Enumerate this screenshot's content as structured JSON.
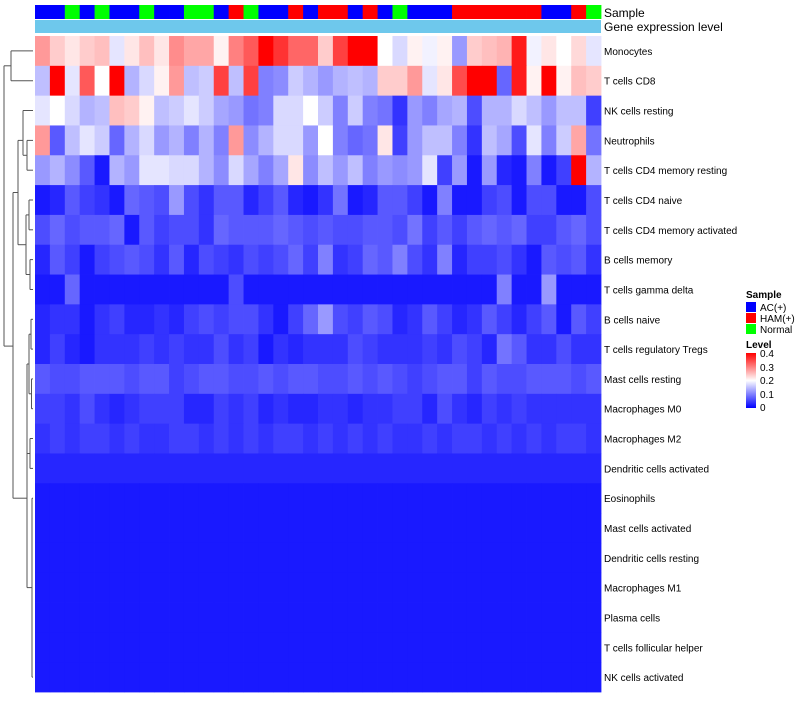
{
  "chart_data": {
    "type": "heatmap",
    "title": "",
    "annotation_tracks": [
      "Sample",
      "Gene expression level"
    ],
    "annotation_track_sample": [
      0,
      0,
      2,
      0,
      2,
      0,
      0,
      2,
      0,
      0,
      2,
      2,
      0,
      1,
      2,
      0,
      0,
      1,
      0,
      1,
      1,
      0,
      1,
      0,
      2,
      0,
      0,
      0,
      1,
      1,
      1,
      1,
      1,
      1,
      0,
      0,
      1,
      2
    ],
    "row_labels": [
      "Monocytes",
      "T cells CD8",
      "NK cells resting",
      "Neutrophils",
      "T cells CD4 memory resting",
      "T cells CD4 naive",
      "T cells CD4 memory activated",
      "B cells memory",
      "T cells gamma delta",
      "B cells naive",
      "T cells regulatory  Tregs",
      "Mast cells resting",
      "Macrophages M0",
      "Macrophages M2",
      "Dendritic cells activated",
      "Eosinophils",
      "Mast cells activated",
      "Dendritic cells resting",
      "Macrophages M1",
      "Plasma cells",
      "T cells follicular helper",
      "NK cells activated"
    ],
    "matrix": [
      [
        0.28,
        0.24,
        0.22,
        0.24,
        0.25,
        0.18,
        0.22,
        0.25,
        0.22,
        0.29,
        0.27,
        0.27,
        0.21,
        0.3,
        0.33,
        0.4,
        0.36,
        0.32,
        0.32,
        0.24,
        0.35,
        0.4,
        0.4,
        0.2,
        0.17,
        0.21,
        0.19,
        0.21,
        0.12,
        0.24,
        0.25,
        0.26,
        0.38,
        0.19,
        0.22,
        0.2,
        0.23,
        0.18
      ],
      [
        0.15,
        0.4,
        0.18,
        0.33,
        0.2,
        0.4,
        0.14,
        0.17,
        0.21,
        0.28,
        0.15,
        0.16,
        0.35,
        0.15,
        0.35,
        0.1,
        0.11,
        0.16,
        0.14,
        0.12,
        0.14,
        0.15,
        0.14,
        0.24,
        0.24,
        0.28,
        0.18,
        0.22,
        0.34,
        0.4,
        0.4,
        0.08,
        0.38,
        0.21,
        0.4,
        0.21,
        0.25,
        0.24
      ],
      [
        0.18,
        0.2,
        0.17,
        0.14,
        0.15,
        0.25,
        0.24,
        0.21,
        0.15,
        0.16,
        0.18,
        0.16,
        0.13,
        0.12,
        0.09,
        0.1,
        0.17,
        0.17,
        0.2,
        0.16,
        0.1,
        0.16,
        0.1,
        0.09,
        0.04,
        0.12,
        0.1,
        0.13,
        0.14,
        0.06,
        0.14,
        0.14,
        0.17,
        0.15,
        0.12,
        0.15,
        0.15,
        0.05
      ],
      [
        0.28,
        0.07,
        0.15,
        0.18,
        0.16,
        0.08,
        0.14,
        0.17,
        0.12,
        0.14,
        0.1,
        0.14,
        0.1,
        0.28,
        0.11,
        0.14,
        0.17,
        0.17,
        0.12,
        0.2,
        0.1,
        0.08,
        0.09,
        0.22,
        0.05,
        0.12,
        0.15,
        0.15,
        0.1,
        0.04,
        0.15,
        0.13,
        0.06,
        0.18,
        0.1,
        0.16,
        0.27,
        0.09
      ],
      [
        0.12,
        0.14,
        0.11,
        0.07,
        0.02,
        0.14,
        0.12,
        0.18,
        0.18,
        0.17,
        0.17,
        0.14,
        0.11,
        0.17,
        0.13,
        0.1,
        0.13,
        0.22,
        0.11,
        0.15,
        0.12,
        0.15,
        0.1,
        0.12,
        0.11,
        0.12,
        0.18,
        0.05,
        0.12,
        0.02,
        0.12,
        0.03,
        0.02,
        0.1,
        0.02,
        0.05,
        0.4,
        0.14
      ],
      [
        0.02,
        0.03,
        0.07,
        0.05,
        0.04,
        0.02,
        0.08,
        0.07,
        0.06,
        0.12,
        0.06,
        0.04,
        0.07,
        0.07,
        0.03,
        0.05,
        0.07,
        0.03,
        0.02,
        0.04,
        0.09,
        0.02,
        0.03,
        0.07,
        0.07,
        0.05,
        0.02,
        0.1,
        0.02,
        0.02,
        0.05,
        0.06,
        0.02,
        0.06,
        0.06,
        0.02,
        0.02,
        0.06
      ],
      [
        0.06,
        0.08,
        0.06,
        0.07,
        0.07,
        0.08,
        0.02,
        0.07,
        0.05,
        0.06,
        0.06,
        0.04,
        0.08,
        0.07,
        0.07,
        0.07,
        0.08,
        0.07,
        0.06,
        0.07,
        0.06,
        0.06,
        0.07,
        0.07,
        0.06,
        0.09,
        0.05,
        0.07,
        0.05,
        0.07,
        0.08,
        0.07,
        0.08,
        0.05,
        0.05,
        0.07,
        0.08,
        0.06
      ],
      [
        0.03,
        0.07,
        0.05,
        0.02,
        0.05,
        0.06,
        0.07,
        0.06,
        0.04,
        0.07,
        0.03,
        0.06,
        0.05,
        0.04,
        0.06,
        0.05,
        0.06,
        0.08,
        0.05,
        0.1,
        0.04,
        0.05,
        0.08,
        0.07,
        0.1,
        0.06,
        0.04,
        0.1,
        0.03,
        0.05,
        0.05,
        0.06,
        0.04,
        0.02,
        0.07,
        0.06,
        0.07,
        0.04
      ],
      [
        0.02,
        0.02,
        0.08,
        0.02,
        0.02,
        0.02,
        0.02,
        0.02,
        0.02,
        0.02,
        0.02,
        0.02,
        0.02,
        0.06,
        0.02,
        0.02,
        0.02,
        0.02,
        0.02,
        0.02,
        0.02,
        0.02,
        0.02,
        0.02,
        0.02,
        0.02,
        0.02,
        0.02,
        0.02,
        0.02,
        0.02,
        0.1,
        0.02,
        0.02,
        0.12,
        0.02,
        0.02,
        0.02
      ],
      [
        0.03,
        0.04,
        0.04,
        0.02,
        0.04,
        0.05,
        0.03,
        0.03,
        0.04,
        0.03,
        0.05,
        0.06,
        0.05,
        0.06,
        0.06,
        0.04,
        0.02,
        0.05,
        0.08,
        0.12,
        0.06,
        0.05,
        0.07,
        0.06,
        0.03,
        0.04,
        0.07,
        0.05,
        0.03,
        0.04,
        0.07,
        0.05,
        0.03,
        0.05,
        0.07,
        0.02,
        0.07,
        0.05
      ],
      [
        0.03,
        0.05,
        0.03,
        0.02,
        0.04,
        0.04,
        0.04,
        0.05,
        0.04,
        0.05,
        0.04,
        0.04,
        0.06,
        0.04,
        0.05,
        0.02,
        0.04,
        0.03,
        0.04,
        0.04,
        0.04,
        0.06,
        0.05,
        0.04,
        0.04,
        0.04,
        0.05,
        0.04,
        0.06,
        0.05,
        0.03,
        0.09,
        0.07,
        0.04,
        0.04,
        0.06,
        0.04,
        0.04
      ],
      [
        0.07,
        0.06,
        0.06,
        0.07,
        0.07,
        0.07,
        0.06,
        0.07,
        0.07,
        0.05,
        0.06,
        0.07,
        0.07,
        0.06,
        0.06,
        0.07,
        0.06,
        0.07,
        0.07,
        0.06,
        0.06,
        0.07,
        0.06,
        0.07,
        0.06,
        0.05,
        0.06,
        0.07,
        0.07,
        0.05,
        0.07,
        0.06,
        0.06,
        0.07,
        0.07,
        0.07,
        0.06,
        0.07
      ],
      [
        0.05,
        0.05,
        0.04,
        0.06,
        0.04,
        0.03,
        0.04,
        0.05,
        0.05,
        0.05,
        0.03,
        0.03,
        0.05,
        0.04,
        0.05,
        0.03,
        0.04,
        0.03,
        0.03,
        0.04,
        0.04,
        0.03,
        0.04,
        0.04,
        0.05,
        0.05,
        0.03,
        0.06,
        0.04,
        0.03,
        0.05,
        0.04,
        0.05,
        0.04,
        0.04,
        0.04,
        0.04,
        0.04
      ],
      [
        0.04,
        0.05,
        0.04,
        0.05,
        0.05,
        0.04,
        0.05,
        0.04,
        0.04,
        0.05,
        0.05,
        0.04,
        0.05,
        0.04,
        0.05,
        0.04,
        0.05,
        0.05,
        0.04,
        0.05,
        0.04,
        0.05,
        0.04,
        0.05,
        0.04,
        0.04,
        0.05,
        0.04,
        0.05,
        0.05,
        0.04,
        0.05,
        0.04,
        0.05,
        0.04,
        0.05,
        0.05,
        0.04
      ],
      [
        0.03,
        0.03,
        0.03,
        0.03,
        0.03,
        0.03,
        0.03,
        0.03,
        0.03,
        0.03,
        0.03,
        0.03,
        0.03,
        0.03,
        0.03,
        0.03,
        0.03,
        0.03,
        0.03,
        0.03,
        0.03,
        0.03,
        0.03,
        0.03,
        0.03,
        0.03,
        0.03,
        0.03,
        0.03,
        0.03,
        0.03,
        0.03,
        0.03,
        0.03,
        0.03,
        0.03,
        0.03,
        0.03
      ],
      [
        0.02,
        0.02,
        0.02,
        0.02,
        0.02,
        0.02,
        0.02,
        0.02,
        0.02,
        0.02,
        0.02,
        0.02,
        0.02,
        0.02,
        0.02,
        0.02,
        0.02,
        0.02,
        0.02,
        0.02,
        0.02,
        0.02,
        0.02,
        0.02,
        0.02,
        0.02,
        0.02,
        0.02,
        0.02,
        0.02,
        0.02,
        0.02,
        0.02,
        0.02,
        0.02,
        0.02,
        0.02,
        0.02
      ],
      [
        0.02,
        0.02,
        0.02,
        0.02,
        0.02,
        0.02,
        0.02,
        0.02,
        0.02,
        0.02,
        0.02,
        0.02,
        0.02,
        0.02,
        0.02,
        0.02,
        0.02,
        0.02,
        0.02,
        0.02,
        0.02,
        0.02,
        0.02,
        0.02,
        0.02,
        0.02,
        0.02,
        0.02,
        0.02,
        0.02,
        0.02,
        0.02,
        0.02,
        0.02,
        0.02,
        0.02,
        0.02,
        0.02
      ],
      [
        0.02,
        0.02,
        0.02,
        0.02,
        0.02,
        0.02,
        0.02,
        0.02,
        0.02,
        0.02,
        0.02,
        0.02,
        0.02,
        0.02,
        0.02,
        0.02,
        0.02,
        0.02,
        0.02,
        0.02,
        0.02,
        0.02,
        0.02,
        0.02,
        0.02,
        0.02,
        0.02,
        0.02,
        0.02,
        0.02,
        0.02,
        0.02,
        0.02,
        0.02,
        0.02,
        0.02,
        0.02,
        0.02
      ],
      [
        0.02,
        0.02,
        0.02,
        0.02,
        0.02,
        0.02,
        0.02,
        0.02,
        0.02,
        0.02,
        0.02,
        0.02,
        0.02,
        0.02,
        0.02,
        0.02,
        0.02,
        0.02,
        0.02,
        0.02,
        0.02,
        0.02,
        0.02,
        0.02,
        0.02,
        0.02,
        0.02,
        0.02,
        0.02,
        0.02,
        0.02,
        0.02,
        0.02,
        0.02,
        0.02,
        0.02,
        0.02,
        0.02
      ],
      [
        0.02,
        0.02,
        0.02,
        0.02,
        0.02,
        0.02,
        0.02,
        0.02,
        0.02,
        0.02,
        0.02,
        0.02,
        0.02,
        0.02,
        0.02,
        0.02,
        0.02,
        0.02,
        0.02,
        0.02,
        0.02,
        0.02,
        0.02,
        0.02,
        0.02,
        0.02,
        0.02,
        0.02,
        0.02,
        0.02,
        0.02,
        0.02,
        0.02,
        0.02,
        0.02,
        0.02,
        0.02,
        0.02
      ],
      [
        0.02,
        0.02,
        0.02,
        0.02,
        0.02,
        0.02,
        0.02,
        0.02,
        0.02,
        0.02,
        0.02,
        0.02,
        0.02,
        0.02,
        0.02,
        0.02,
        0.02,
        0.02,
        0.02,
        0.02,
        0.02,
        0.02,
        0.02,
        0.02,
        0.02,
        0.02,
        0.02,
        0.02,
        0.02,
        0.02,
        0.02,
        0.02,
        0.02,
        0.02,
        0.02,
        0.02,
        0.02,
        0.02
      ],
      [
        0.02,
        0.02,
        0.02,
        0.02,
        0.02,
        0.02,
        0.02,
        0.02,
        0.02,
        0.02,
        0.02,
        0.02,
        0.02,
        0.02,
        0.02,
        0.02,
        0.02,
        0.02,
        0.02,
        0.02,
        0.02,
        0.02,
        0.02,
        0.02,
        0.02,
        0.02,
        0.02,
        0.02,
        0.02,
        0.02,
        0.02,
        0.02,
        0.02,
        0.02,
        0.02,
        0.02,
        0.02,
        0.02
      ]
    ],
    "color_scale": {
      "low": "#0000ff",
      "mid": "#ffffff",
      "high": "#ff0000",
      "midpoint": 0.2,
      "min": 0,
      "max": 0.4
    },
    "legend_sample": {
      "title": "Sample",
      "entries": [
        {
          "label": "AC(+)",
          "color": "#0000ff"
        },
        {
          "label": "HAM(+)",
          "color": "#ff0000"
        },
        {
          "label": "Normal",
          "color": "#00ff00"
        }
      ]
    },
    "legend_level": {
      "title": "Level",
      "ticks": [
        "0.4",
        "0.3",
        "0.2",
        "0.1",
        "0"
      ]
    },
    "gene_expression_color": "#6ec8ec",
    "dendrogram": "row"
  }
}
